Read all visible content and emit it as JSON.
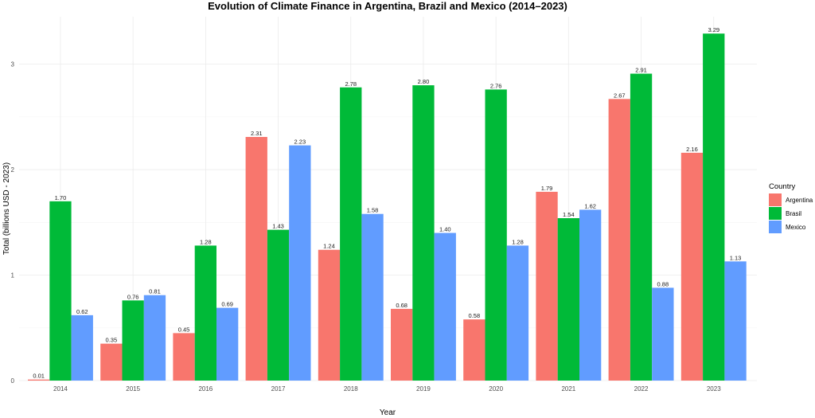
{
  "chart_data": {
    "type": "bar",
    "title": "Evolution of Climate Finance in Argentina, Brazil and Mexico (2014–2023)",
    "xlabel": "Year",
    "ylabel": "Total (billions USD - 2023)",
    "categories": [
      "2014",
      "2015",
      "2016",
      "2017",
      "2018",
      "2019",
      "2020",
      "2021",
      "2022",
      "2023"
    ],
    "series": [
      {
        "name": "Argentina",
        "color": "#F8766D",
        "values": [
          0.01,
          0.35,
          0.45,
          2.31,
          1.24,
          0.68,
          0.58,
          1.79,
          2.67,
          2.16
        ],
        "labels": [
          "0.01",
          "0.35",
          "0.45",
          "2.31",
          "1.24",
          "0.68",
          "0.58",
          "1.79",
          "2.67",
          "2.16"
        ]
      },
      {
        "name": "Brasil",
        "color": "#00BA38",
        "values": [
          1.7,
          0.76,
          1.28,
          1.43,
          2.78,
          2.8,
          2.76,
          1.54,
          2.91,
          3.29
        ],
        "labels": [
          "1.70",
          "0.76",
          "1.28",
          "1.43",
          "2.78",
          "2.80",
          "2.76",
          "1.54",
          "2.91",
          "3.29"
        ]
      },
      {
        "name": "Mexico",
        "color": "#619CFF",
        "values": [
          0.62,
          0.81,
          0.69,
          2.23,
          1.58,
          1.4,
          1.28,
          1.62,
          0.88,
          1.13
        ],
        "labels": [
          "0.62",
          "0.81",
          "0.69",
          "2.23",
          "1.58",
          "1.40",
          "1.28",
          "1.62",
          "0.88",
          "1.13"
        ]
      }
    ],
    "yticks": [
      0,
      1,
      2,
      3
    ],
    "ytick_labels": [
      "0",
      "1",
      "2",
      "3"
    ],
    "ylim": [
      0,
      3.45
    ],
    "grid": true,
    "legend": {
      "title": "Country",
      "placement": "right"
    }
  }
}
